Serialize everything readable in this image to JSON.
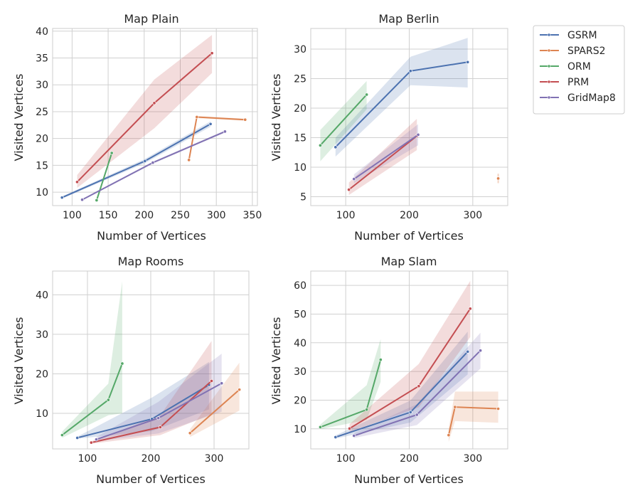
{
  "legend": {
    "placement": "right",
    "entries": [
      {
        "name": "GSRM",
        "color": "#4c72b0"
      },
      {
        "name": "SPARS2",
        "color": "#dd8452"
      },
      {
        "name": "ORM",
        "color": "#55a868"
      },
      {
        "name": "PRM",
        "color": "#c44e52"
      },
      {
        "name": "GridMap8",
        "color": "#8172b3"
      }
    ]
  },
  "chart_data": [
    {
      "type": "line",
      "title": "Map Plain",
      "xlabel": "Number of Vertices",
      "ylabel": "Visited Vertices",
      "xlim": [
        73,
        357
      ],
      "ylim": [
        7.5,
        40.5
      ],
      "xticks": [
        100,
        150,
        200,
        250,
        300,
        350
      ],
      "yticks": [
        10,
        15,
        20,
        25,
        30,
        35,
        40
      ],
      "grid": true,
      "series": [
        {
          "name": "GSRM",
          "x": [
            86,
            201,
            292
          ],
          "y": [
            9.0,
            15.8,
            22.7
          ],
          "lower": [
            8.8,
            15.4,
            22.2
          ],
          "upper": [
            9.2,
            16.2,
            23.2
          ]
        },
        {
          "name": "SPARS2",
          "x": [
            262,
            273,
            340
          ],
          "y": [
            16.0,
            24.0,
            23.5
          ],
          "lower": [
            15.7,
            23.8,
            23.3
          ],
          "upper": [
            16.3,
            24.2,
            23.7
          ]
        },
        {
          "name": "ORM",
          "x": [
            134,
            155
          ],
          "y": [
            8.5,
            17.3
          ],
          "lower": [
            8.0,
            16.9
          ],
          "upper": [
            9.0,
            17.7
          ]
        },
        {
          "name": "PRM",
          "x": [
            107,
            214,
            294
          ],
          "y": [
            11.9,
            26.6,
            35.9
          ],
          "lower": [
            10.8,
            21.9,
            32.2
          ],
          "upper": [
            13.2,
            31.0,
            39.3
          ]
        },
        {
          "name": "GridMap8",
          "x": [
            114,
            212,
            312
          ],
          "y": [
            8.6,
            15.5,
            21.3
          ],
          "lower": [
            8.5,
            15.3,
            21.1
          ],
          "upper": [
            8.7,
            15.7,
            21.5
          ]
        }
      ]
    },
    {
      "type": "line",
      "title": "Map Berlin",
      "xlabel": "Number of Vertices",
      "ylabel": "Visited Vertices",
      "xlim": [
        45,
        355
      ],
      "ylim": [
        3.5,
        33.5
      ],
      "xticks": [
        100,
        200,
        300
      ],
      "yticks": [
        5,
        10,
        15,
        20,
        25,
        30
      ],
      "grid": true,
      "series": [
        {
          "name": "GSRM",
          "x": [
            84,
            202,
            292
          ],
          "y": [
            13.4,
            26.3,
            27.8
          ],
          "lower": [
            11.8,
            23.9,
            23.5
          ],
          "upper": [
            15.0,
            28.7,
            31.9
          ]
        },
        {
          "name": "SPARS2",
          "x": [
            340
          ],
          "y": [
            8.1
          ],
          "lower": [
            7.3
          ],
          "upper": [
            8.9
          ]
        },
        {
          "name": "ORM",
          "x": [
            60,
            133
          ],
          "y": [
            13.7,
            22.3
          ],
          "lower": [
            11.0,
            19.8
          ],
          "upper": [
            16.3,
            24.6
          ]
        },
        {
          "name": "PRM",
          "x": [
            105,
            212
          ],
          "y": [
            6.2,
            15.3
          ],
          "lower": [
            5.3,
            12.9
          ],
          "upper": [
            7.4,
            18.2
          ]
        },
        {
          "name": "GridMap8",
          "x": [
            113,
            214
          ],
          "y": [
            8.0,
            15.5
          ],
          "lower": [
            7.3,
            13.7
          ],
          "upper": [
            8.8,
            17.3
          ]
        }
      ]
    },
    {
      "type": "line",
      "title": "Map Rooms",
      "xlabel": "Number of Vertices",
      "ylabel": "Visited Vertices",
      "xlim": [
        45,
        355
      ],
      "ylim": [
        1,
        46
      ],
      "xticks": [
        100,
        200,
        300
      ],
      "yticks": [
        10,
        20,
        30,
        40
      ],
      "grid": true,
      "series": [
        {
          "name": "GSRM",
          "x": [
            84,
            202,
            292
          ],
          "y": [
            3.8,
            8.6,
            17.2
          ],
          "lower": [
            3.6,
            5.5,
            11.0
          ],
          "upper": [
            4.1,
            14.0,
            23.0
          ]
        },
        {
          "name": "SPARS2",
          "x": [
            262,
            340
          ],
          "y": [
            5.0,
            16.0
          ],
          "lower": [
            4.0,
            10.7
          ],
          "upper": [
            6.0,
            22.8
          ]
        },
        {
          "name": "ORM",
          "x": [
            60,
            133,
            155
          ],
          "y": [
            4.5,
            13.4,
            22.6
          ],
          "lower": [
            3.8,
            9.5,
            10.0
          ],
          "upper": [
            5.4,
            17.5,
            43.4
          ]
        },
        {
          "name": "PRM",
          "x": [
            106,
            215,
            296
          ],
          "y": [
            2.6,
            6.5,
            18.2
          ],
          "lower": [
            2.3,
            4.5,
            9.8
          ],
          "upper": [
            2.9,
            9.5,
            28.3
          ]
        },
        {
          "name": "GridMap8",
          "x": [
            114,
            212,
            312
          ],
          "y": [
            3.4,
            8.8,
            17.6
          ],
          "lower": [
            2.9,
            4.9,
            10.4
          ],
          "upper": [
            4.0,
            12.9,
            25.1
          ]
        }
      ]
    },
    {
      "type": "line",
      "title": "Map Slam",
      "xlabel": "Number of Vertices",
      "ylabel": "Visited Vertices",
      "xlim": [
        45,
        355
      ],
      "ylim": [
        3,
        65
      ],
      "xticks": [
        100,
        200,
        300
      ],
      "yticks": [
        10,
        20,
        30,
        40,
        50,
        60
      ],
      "grid": true,
      "series": [
        {
          "name": "GSRM",
          "x": [
            84,
            202,
            292
          ],
          "y": [
            7.1,
            15.8,
            36.9
          ],
          "lower": [
            6.6,
            12.2,
            29.0
          ],
          "upper": [
            7.7,
            19.9,
            43.9
          ]
        },
        {
          "name": "SPARS2",
          "x": [
            262,
            272,
            340
          ],
          "y": [
            7.8,
            17.6,
            17.0
          ],
          "lower": [
            5.4,
            12.7,
            12.1
          ],
          "upper": [
            10.0,
            23.0,
            23.0
          ]
        },
        {
          "name": "ORM",
          "x": [
            60,
            133,
            155
          ],
          "y": [
            10.6,
            16.7,
            34.1
          ],
          "lower": [
            9.9,
            13.1,
            26.4
          ],
          "upper": [
            11.5,
            25.2,
            41.3
          ]
        },
        {
          "name": "PRM",
          "x": [
            106,
            215,
            296
          ],
          "y": [
            10.1,
            24.9,
            51.9
          ],
          "lower": [
            8.9,
            17.5,
            42.0
          ],
          "upper": [
            11.6,
            32.6,
            61.6
          ]
        },
        {
          "name": "GridMap8",
          "x": [
            113,
            212,
            312
          ],
          "y": [
            7.6,
            14.9,
            37.3
          ],
          "lower": [
            6.8,
            11.3,
            31.0
          ],
          "upper": [
            8.5,
            18.6,
            43.5
          ]
        }
      ]
    }
  ]
}
